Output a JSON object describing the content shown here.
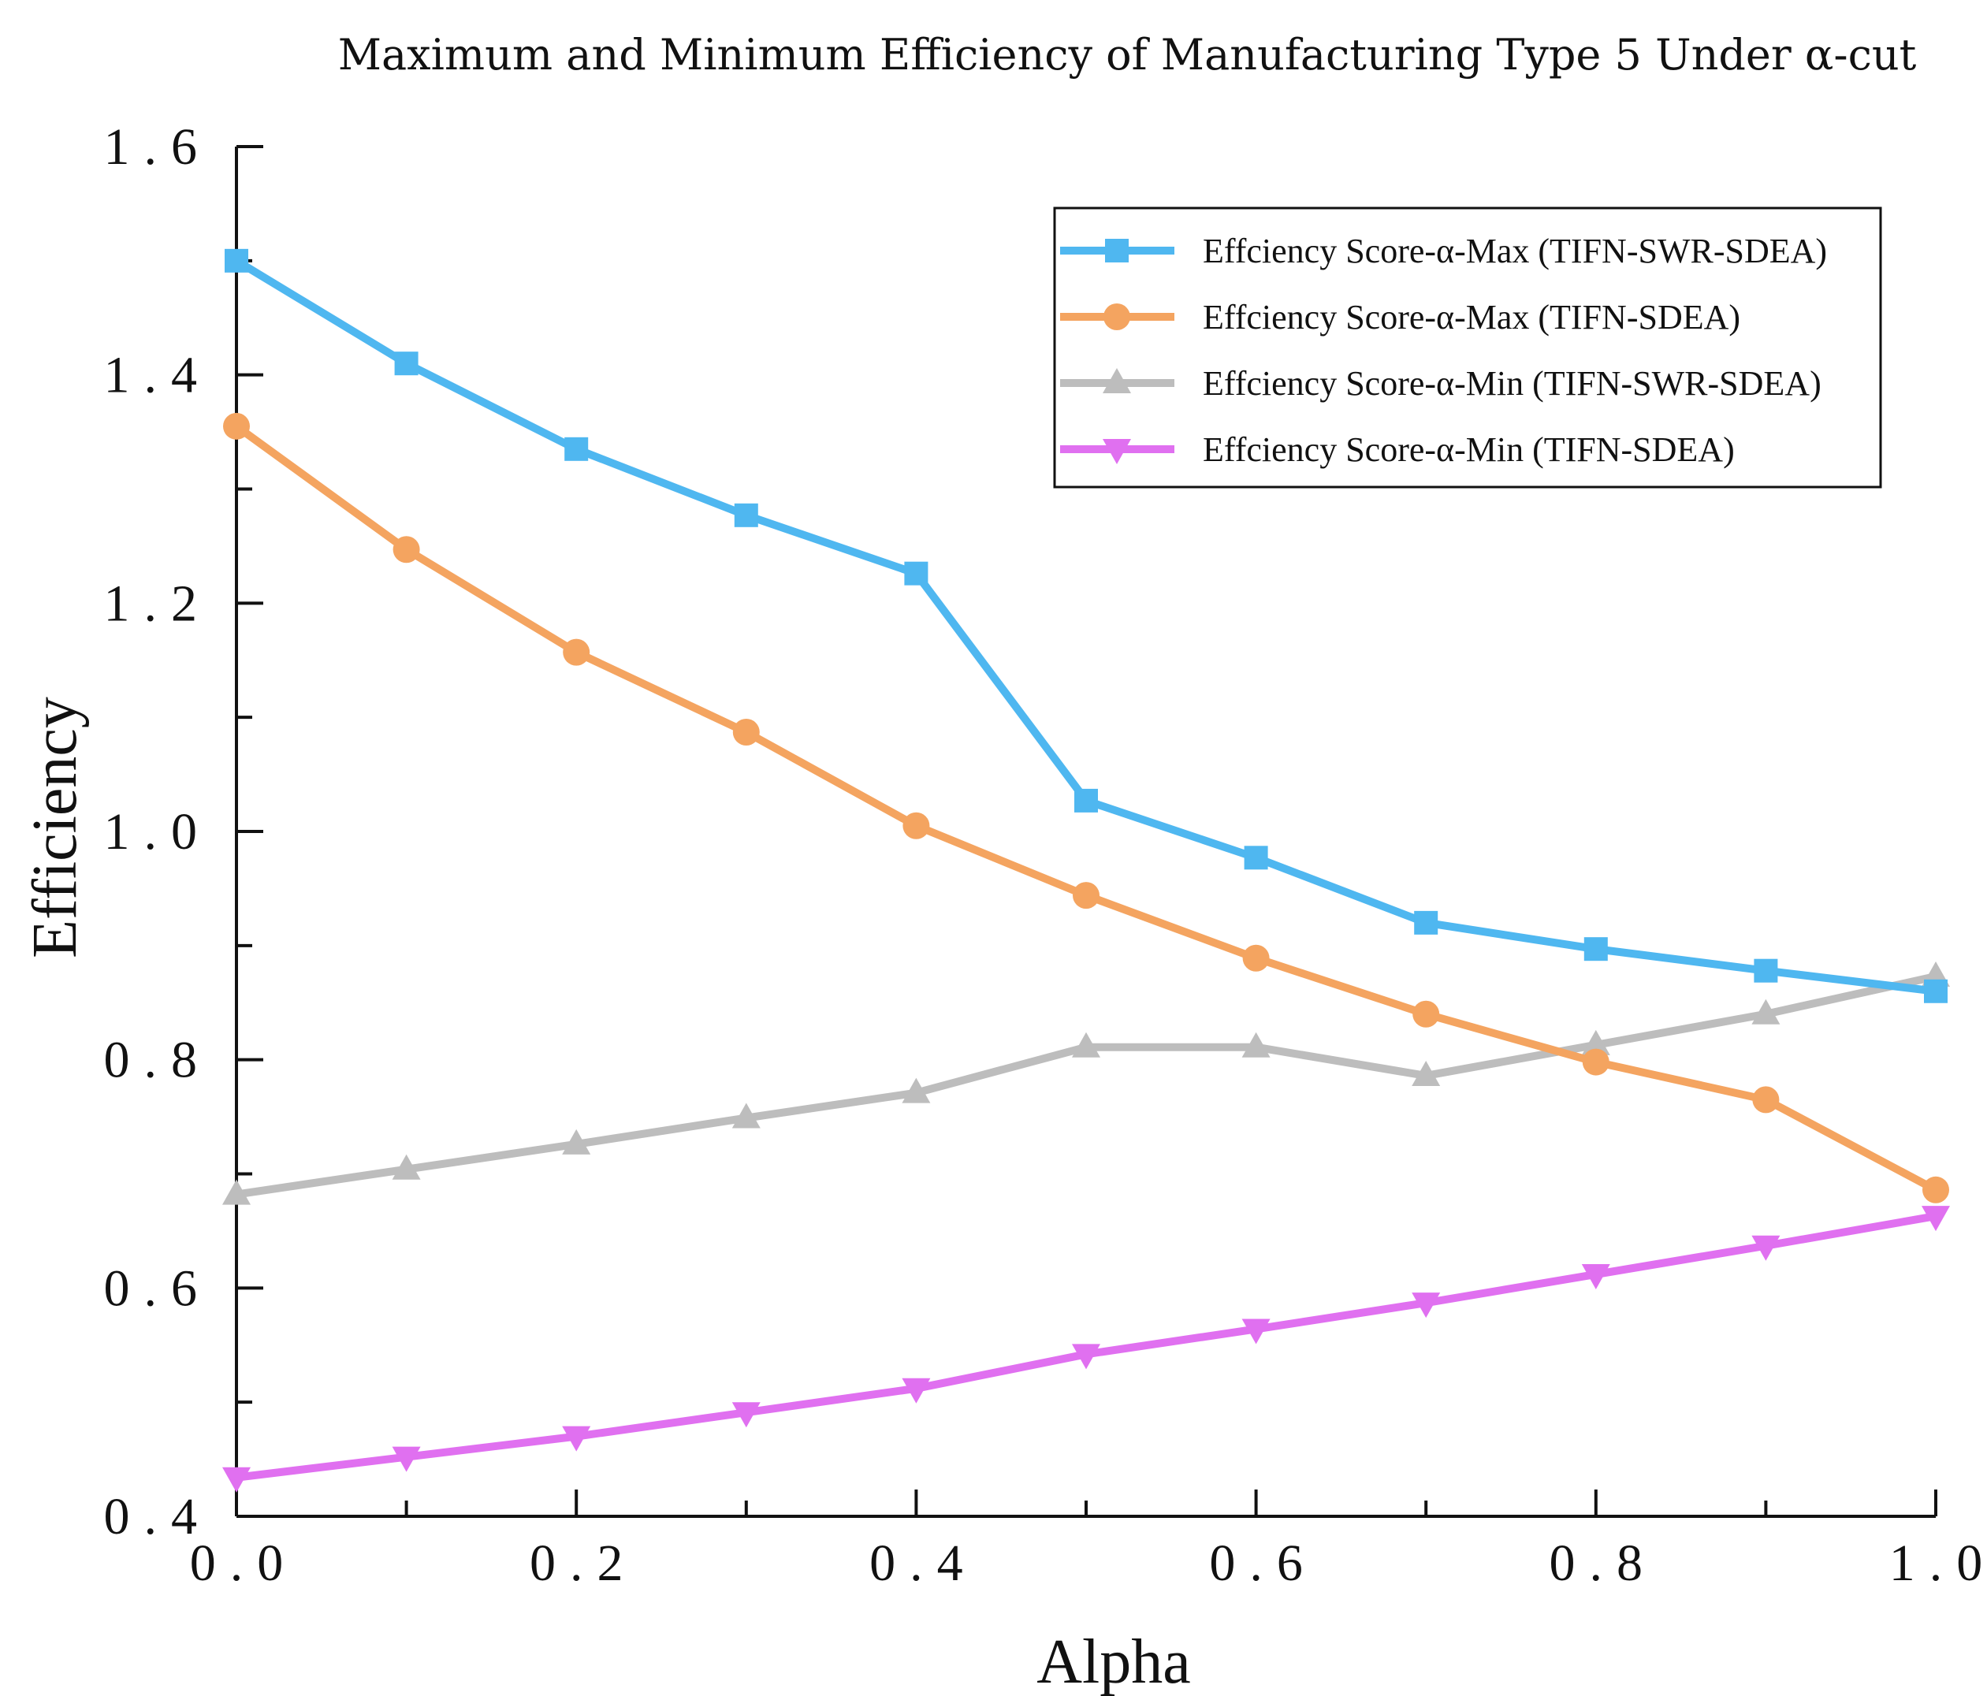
{
  "chart_data": {
    "type": "line",
    "title": "Maximum and Minimum Efficiency of Manufacturing Type 5 Under α-cut",
    "xlabel": "Alpha",
    "ylabel": "Efficiency",
    "xlim": [
      0.0,
      1.0
    ],
    "ylim": [
      0.4,
      1.6
    ],
    "x": [
      0.0,
      0.1,
      0.2,
      0.3,
      0.4,
      0.5,
      0.6,
      0.7,
      0.8,
      0.9,
      1.0
    ],
    "x_ticks": [
      0.0,
      0.2,
      0.4,
      0.6,
      0.8,
      1.0
    ],
    "x_tick_labels": [
      "0.0",
      "0.2",
      "0.4",
      "0.6",
      "0.8",
      "1.0"
    ],
    "y_ticks": [
      0.4,
      0.6,
      0.8,
      1.0,
      1.2,
      1.4,
      1.6
    ],
    "y_tick_labels": [
      "0.4",
      "0.6",
      "0.8",
      "1.0",
      "1.2",
      "1.4",
      "1.6"
    ],
    "grid": false,
    "legend_position": "top-right",
    "series": [
      {
        "name": "Effciency Score-α-Max (TIFN-SWR-SDEA)",
        "color": "#4FB7F0",
        "marker": "square",
        "values": [
          1.5,
          1.41,
          1.335,
          1.277,
          1.226,
          1.027,
          0.977,
          0.92,
          0.897,
          0.878,
          0.86
        ]
      },
      {
        "name": "Effciency Score-α-Max (TIFN-SDEA)",
        "color": "#F4A460",
        "marker": "circle",
        "values": [
          1.355,
          1.247,
          1.157,
          1.087,
          1.005,
          0.944,
          0.889,
          0.84,
          0.798,
          0.765,
          0.686
        ]
      },
      {
        "name": "Effciency Score-α-Min (TIFN-SWR-SDEA)",
        "color": "#BDBDBD",
        "marker": "triangle-up",
        "values": [
          0.682,
          0.704,
          0.726,
          0.749,
          0.771,
          0.811,
          0.811,
          0.786,
          0.813,
          0.84,
          0.873
        ]
      },
      {
        "name": "Effciency Score-α-Min (TIFN-SDEA)",
        "color": "#E070F0",
        "marker": "triangle-down",
        "values": [
          0.434,
          0.452,
          0.47,
          0.491,
          0.512,
          0.542,
          0.564,
          0.587,
          0.612,
          0.637,
          0.663
        ]
      }
    ]
  }
}
